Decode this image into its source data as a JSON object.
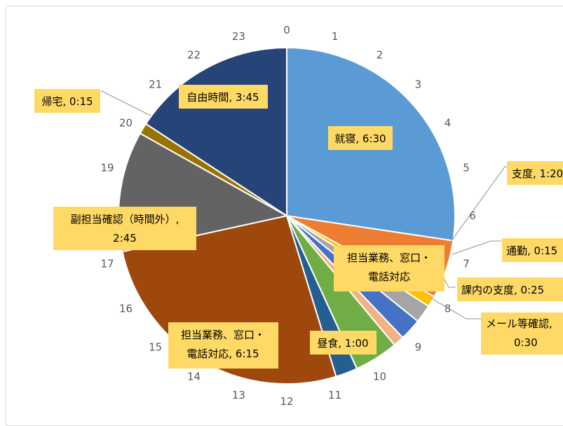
{
  "chart_data": {
    "type": "pie",
    "title": "",
    "start_angle_deg": 0,
    "direction": "clockwise",
    "hour_ticks": [
      "0",
      "1",
      "2",
      "3",
      "4",
      "5",
      "6",
      "7",
      "8",
      "9",
      "10",
      "11",
      "12",
      "13",
      "14",
      "15",
      "16",
      "17",
      "18",
      "19",
      "20",
      "21",
      "22",
      "23"
    ],
    "slices": [
      {
        "label": "就寝, 6:30",
        "minutes": 390,
        "color": "#5b9bd5"
      },
      {
        "label": "支度, 1:20",
        "minutes": 80,
        "color": "#ed7d31"
      },
      {
        "label": "通勤, 0:15",
        "minutes": 15,
        "color": "#ffc000"
      },
      {
        "label": "課内の支度, 0:25",
        "minutes": 25,
        "color": "#a5a5a5"
      },
      {
        "label": "メール等確認, 0:30",
        "minutes": 30,
        "color": "#4472c4"
      },
      {
        "label": "担当業務、窓口・電話対応",
        "minutes": 15,
        "color": "#f4b183"
      },
      {
        "label": "昼食, 1:00",
        "minutes": 60,
        "color": "#70ad47"
      },
      {
        "label": "",
        "minutes": 30,
        "color": "#255e91"
      },
      {
        "label": "担当業務、窓口・電話対応, 6:15",
        "minutes": 375,
        "color": "#9e480e"
      },
      {
        "label": "副担当確認（時間外）, 2:45",
        "minutes": 165,
        "color": "#636363"
      },
      {
        "label": "帰宅, 0:15",
        "minutes": 15,
        "color": "#997300"
      },
      {
        "label": "自由時間, 3:45",
        "minutes": 225,
        "color": "#264478"
      }
    ]
  },
  "labels": {
    "sleep": "就寝, 6:30",
    "prep": "支度, 1:20",
    "commute": "通勤, 0:15",
    "office_prep": "課内の支度, 0:25",
    "mail_1": "メール等確認,",
    "mail_2": "0:30",
    "duty_short_1": "担当業務、窓口・",
    "duty_short_2": "電話対応",
    "lunch": "昼食, 1:00",
    "duty_long_1": "担当業務、窓口・",
    "duty_long_2": "電話対応, 6:15",
    "sub_1": "副担当確認（時間外）,",
    "sub_2": "2:45",
    "home": "帰宅, 0:15",
    "free": "自由時間, 3:45"
  }
}
